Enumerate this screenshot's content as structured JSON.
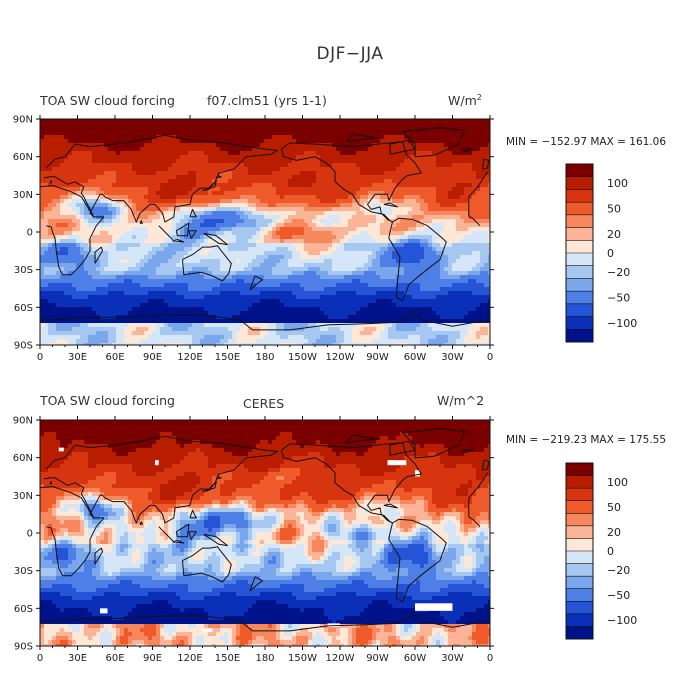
{
  "figure": {
    "title": "DJF−JJA"
  },
  "x_tick_labels": [
    "0",
    "30E",
    "60E",
    "90E",
    "120E",
    "150E",
    "180",
    "150W",
    "120W",
    "90W",
    "60W",
    "30W",
    "0"
  ],
  "y_tick_labels": [
    "90N",
    "60N",
    "30N",
    "0",
    "30S",
    "60S",
    "90S"
  ],
  "colorbar_labels": [
    "100",
    "50",
    "20",
    "0",
    "−20",
    "−50",
    "−100"
  ],
  "colors": {
    "levels": [
      "#7a0000",
      "#b81d00",
      "#d73510",
      "#ef5a2a",
      "#f7875c",
      "#fbb497",
      "#fde7d6",
      "#d4e6f7",
      "#a6c8f0",
      "#7aa6eb",
      "#4d7fe6",
      "#2555d6",
      "#0a2fb8",
      "#00128a"
    ],
    "coast": "#111111"
  },
  "panels": [
    {
      "left_label": "TOA SW cloud forcing",
      "center_label": "f07.clm51 (yrs 1-1)",
      "units": "W/m",
      "units_sup": "2",
      "stats": "MIN = −152.97  MAX = 161.06",
      "min": -152.97,
      "max": 161.06
    },
    {
      "left_label": "TOA SW cloud forcing",
      "center_label": "CERES",
      "units": "W/m^2",
      "units_sup": "",
      "stats": "MIN = −219.23  MAX = 175.55",
      "min": -219.23,
      "max": 175.55
    }
  ],
  "chart_data": {
    "type": "heatmap",
    "title": "DJF−JJA",
    "contour_levels": [
      -100,
      -70,
      -50,
      -30,
      -20,
      -10,
      0,
      10,
      20,
      30,
      50,
      70,
      100
    ],
    "x_range": [
      0,
      360
    ],
    "y_range": [
      -90,
      90
    ],
    "panels": [
      {
        "label": "f07.clm51 (yrs 1-1)",
        "variable": "TOA SW cloud forcing",
        "units": "W/m2",
        "min": -152.97,
        "max": 161.06
      },
      {
        "label": "CERES",
        "variable": "TOA SW cloud forcing",
        "units": "W/m^2",
        "min": -219.23,
        "max": 175.55
      }
    ]
  }
}
